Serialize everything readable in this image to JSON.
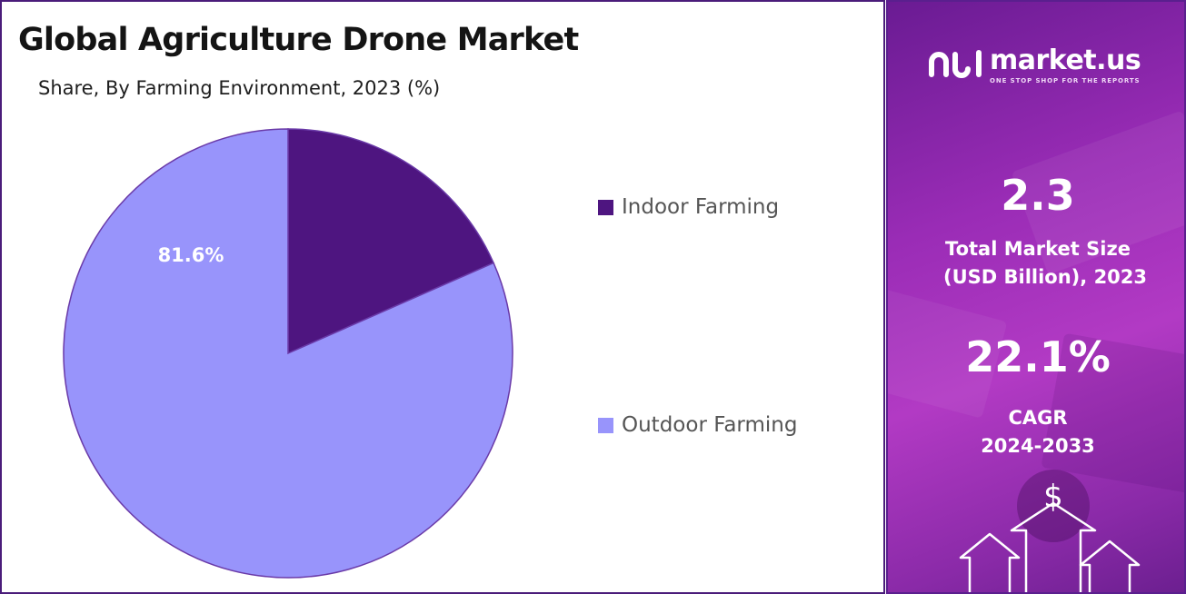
{
  "header": {
    "title": "Global Agriculture Drone Market",
    "subtitle": "Share, By Farming Environment, 2023 (%)"
  },
  "chart_data": {
    "type": "pie",
    "title": "Global Agriculture Drone Market",
    "subtitle": "Share, By Farming Environment, 2023 (%)",
    "slices": [
      {
        "name": "Indoor Farming",
        "value": 18.4,
        "label": "",
        "color": "#4e1580"
      },
      {
        "name": "Outdoor Farming",
        "value": 81.6,
        "label": "81.6%",
        "color": "#9894fb"
      }
    ],
    "legend": "right",
    "label_color": "#ffffff",
    "edge_color": "#6a3aa8"
  },
  "brand": {
    "name": "market.us",
    "tagline": "ONE STOP SHOP FOR THE REPORTS",
    "icon": "market-us-logo-icon"
  },
  "stats": {
    "market_size_value": "2.3",
    "market_size_label_line1": "Total Market Size",
    "market_size_label_line2": "(USD Billion), 2023",
    "cagr_value": "22.1%",
    "cagr_label_line1": "CAGR",
    "cagr_label_line2": "2024-2033"
  },
  "decor": {
    "currency_symbol": "$",
    "icons": [
      "dollar-icon",
      "arrow-up-icon"
    ]
  },
  "colors": {
    "frame": "#4a1c7a",
    "panel_gradient": [
      "#6a1b93",
      "#b23ac4",
      "#6c1f90"
    ]
  }
}
